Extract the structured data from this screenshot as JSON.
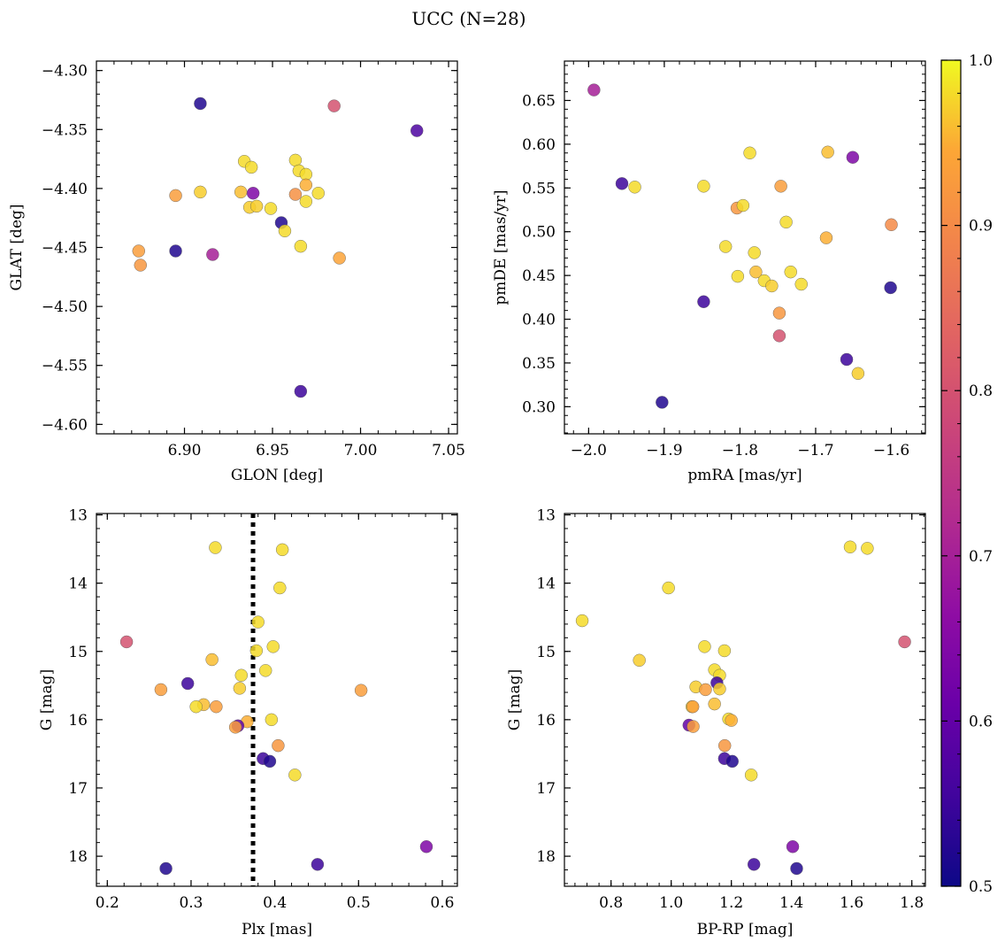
{
  "title": "UCC (N=28)",
  "colorbar": {
    "min": 0.5,
    "max": 1.0,
    "ticks": [
      0.5,
      0.6,
      0.7,
      0.8,
      0.9,
      1.0
    ],
    "tick_labels": [
      "0.5",
      "0.6",
      "0.7",
      "0.8",
      "0.9",
      "1.0"
    ],
    "colormap": "plasma"
  },
  "chart_data": [
    {
      "type": "scatter",
      "xlabel": "GLON [deg]",
      "ylabel": "GLAT [deg]",
      "xlim": [
        6.85,
        7.055
      ],
      "ylim": [
        -4.608,
        -4.292
      ],
      "xticks": [
        6.9,
        6.95,
        7.0,
        7.05
      ],
      "xtick_labels": [
        "6.90",
        "6.95",
        "7.00",
        "7.05"
      ],
      "yticks": [
        -4.3,
        -4.35,
        -4.4,
        -4.45,
        -4.5,
        -4.55,
        -4.6
      ],
      "ytick_labels": [
        "−4.30",
        "−4.35",
        "−4.40",
        "−4.45",
        "−4.50",
        "−4.55",
        "−4.60"
      ],
      "points": [
        {
          "x": 6.909,
          "y": -4.328,
          "c": 0.52
        },
        {
          "x": 6.985,
          "y": -4.33,
          "c": 0.8
        },
        {
          "x": 7.032,
          "y": -4.351,
          "c": 0.57
        },
        {
          "x": 6.934,
          "y": -4.377,
          "c": 0.98
        },
        {
          "x": 6.938,
          "y": -4.382,
          "c": 0.98
        },
        {
          "x": 6.963,
          "y": -4.376,
          "c": 0.98
        },
        {
          "x": 6.965,
          "y": -4.385,
          "c": 0.98
        },
        {
          "x": 6.969,
          "y": -4.388,
          "c": 0.98
        },
        {
          "x": 6.969,
          "y": -4.397,
          "c": 0.95
        },
        {
          "x": 6.895,
          "y": -4.406,
          "c": 0.93
        },
        {
          "x": 6.909,
          "y": -4.403,
          "c": 0.97
        },
        {
          "x": 6.932,
          "y": -4.403,
          "c": 0.96
        },
        {
          "x": 6.939,
          "y": -4.404,
          "c": 0.64
        },
        {
          "x": 6.963,
          "y": -4.405,
          "c": 0.91
        },
        {
          "x": 6.976,
          "y": -4.404,
          "c": 0.98
        },
        {
          "x": 6.969,
          "y": -4.411,
          "c": 0.98
        },
        {
          "x": 6.937,
          "y": -4.416,
          "c": 0.97
        },
        {
          "x": 6.941,
          "y": -4.415,
          "c": 0.97
        },
        {
          "x": 6.949,
          "y": -4.417,
          "c": 0.98
        },
        {
          "x": 6.955,
          "y": -4.429,
          "c": 0.52
        },
        {
          "x": 6.957,
          "y": -4.436,
          "c": 0.98
        },
        {
          "x": 6.966,
          "y": -4.449,
          "c": 0.98
        },
        {
          "x": 6.874,
          "y": -4.453,
          "c": 0.93
        },
        {
          "x": 6.895,
          "y": -4.453,
          "c": 0.52
        },
        {
          "x": 6.916,
          "y": -4.456,
          "c": 0.7
        },
        {
          "x": 6.988,
          "y": -4.459,
          "c": 0.94
        },
        {
          "x": 6.875,
          "y": -4.465,
          "c": 0.92
        },
        {
          "x": 6.966,
          "y": -4.572,
          "c": 0.55
        }
      ]
    },
    {
      "type": "scatter",
      "xlabel": "pmRA [mas/yr]",
      "ylabel": "pmDE [mas/yr]",
      "xlim": [
        -2.032,
        -1.555
      ],
      "ylim": [
        0.269,
        0.695
      ],
      "xticks": [
        -2.0,
        -1.9,
        -1.8,
        -1.7,
        -1.6
      ],
      "xtick_labels": [
        "−2.0",
        "−1.9",
        "−1.8",
        "−1.7",
        "−1.6"
      ],
      "yticks": [
        0.3,
        0.35,
        0.4,
        0.45,
        0.5,
        0.55,
        0.6,
        0.65
      ],
      "ytick_labels": [
        "0.30",
        "0.35",
        "0.40",
        "0.45",
        "0.50",
        "0.55",
        "0.60",
        "0.65"
      ],
      "points": [
        {
          "x": -1.993,
          "y": 0.662,
          "c": 0.7
        },
        {
          "x": -1.956,
          "y": 0.555,
          "c": 0.55
        },
        {
          "x": -1.939,
          "y": 0.551,
          "c": 0.98
        },
        {
          "x": -1.848,
          "y": 0.552,
          "c": 0.98
        },
        {
          "x": -1.787,
          "y": 0.59,
          "c": 0.98
        },
        {
          "x": -1.684,
          "y": 0.591,
          "c": 0.96
        },
        {
          "x": -1.651,
          "y": 0.585,
          "c": 0.64
        },
        {
          "x": -1.746,
          "y": 0.552,
          "c": 0.93
        },
        {
          "x": -1.804,
          "y": 0.527,
          "c": 0.92
        },
        {
          "x": -1.796,
          "y": 0.53,
          "c": 0.98
        },
        {
          "x": -1.739,
          "y": 0.511,
          "c": 0.98
        },
        {
          "x": -1.6,
          "y": 0.508,
          "c": 0.9
        },
        {
          "x": -1.686,
          "y": 0.493,
          "c": 0.95
        },
        {
          "x": -1.819,
          "y": 0.483,
          "c": 0.98
        },
        {
          "x": -1.781,
          "y": 0.476,
          "c": 0.98
        },
        {
          "x": -1.733,
          "y": 0.454,
          "c": 0.98
        },
        {
          "x": -1.779,
          "y": 0.454,
          "c": 0.96
        },
        {
          "x": -1.803,
          "y": 0.449,
          "c": 0.98
        },
        {
          "x": -1.768,
          "y": 0.444,
          "c": 0.98
        },
        {
          "x": -1.719,
          "y": 0.44,
          "c": 0.98
        },
        {
          "x": -1.758,
          "y": 0.438,
          "c": 0.97
        },
        {
          "x": -1.601,
          "y": 0.436,
          "c": 0.52
        },
        {
          "x": -1.848,
          "y": 0.42,
          "c": 0.55
        },
        {
          "x": -1.748,
          "y": 0.407,
          "c": 0.92
        },
        {
          "x": -1.748,
          "y": 0.381,
          "c": 0.8
        },
        {
          "x": -1.659,
          "y": 0.354,
          "c": 0.55
        },
        {
          "x": -1.644,
          "y": 0.338,
          "c": 0.97
        },
        {
          "x": -1.903,
          "y": 0.305,
          "c": 0.52
        }
      ]
    },
    {
      "type": "scatter",
      "xlabel": "Plx [mas]",
      "ylabel": "G [mag]",
      "xlim": [
        0.187,
        0.618
      ],
      "ylim": [
        18.44,
        12.98
      ],
      "xticks": [
        0.2,
        0.3,
        0.4,
        0.5,
        0.6
      ],
      "xtick_labels": [
        "0.2",
        "0.3",
        "0.4",
        "0.5",
        "0.6"
      ],
      "yticks": [
        13,
        14,
        15,
        16,
        17,
        18
      ],
      "ytick_labels": [
        "13",
        "14",
        "15",
        "16",
        "17",
        "18"
      ],
      "vline": 0.374,
      "points": [
        {
          "x": 0.329,
          "y": 13.48,
          "c": 0.98
        },
        {
          "x": 0.409,
          "y": 13.51,
          "c": 0.98
        },
        {
          "x": 0.406,
          "y": 14.07,
          "c": 0.98
        },
        {
          "x": 0.38,
          "y": 14.57,
          "c": 0.98
        },
        {
          "x": 0.223,
          "y": 14.86,
          "c": 0.8
        },
        {
          "x": 0.398,
          "y": 14.93,
          "c": 0.98
        },
        {
          "x": 0.378,
          "y": 14.99,
          "c": 0.98
        },
        {
          "x": 0.325,
          "y": 15.12,
          "c": 0.96
        },
        {
          "x": 0.389,
          "y": 15.28,
          "c": 0.98
        },
        {
          "x": 0.36,
          "y": 15.35,
          "c": 0.98
        },
        {
          "x": 0.296,
          "y": 15.47,
          "c": 0.55
        },
        {
          "x": 0.358,
          "y": 15.54,
          "c": 0.97
        },
        {
          "x": 0.264,
          "y": 15.56,
          "c": 0.93
        },
        {
          "x": 0.503,
          "y": 15.57,
          "c": 0.93
        },
        {
          "x": 0.315,
          "y": 15.78,
          "c": 0.96
        },
        {
          "x": 0.306,
          "y": 15.81,
          "c": 0.98
        },
        {
          "x": 0.33,
          "y": 15.81,
          "c": 0.93
        },
        {
          "x": 0.396,
          "y": 16.0,
          "c": 0.98
        },
        {
          "x": 0.367,
          "y": 16.03,
          "c": 0.95
        },
        {
          "x": 0.356,
          "y": 16.09,
          "c": 0.6
        },
        {
          "x": 0.353,
          "y": 16.11,
          "c": 0.93
        },
        {
          "x": 0.404,
          "y": 16.38,
          "c": 0.92
        },
        {
          "x": 0.386,
          "y": 16.57,
          "c": 0.55
        },
        {
          "x": 0.394,
          "y": 16.61,
          "c": 0.52
        },
        {
          "x": 0.424,
          "y": 16.81,
          "c": 0.98
        },
        {
          "x": 0.581,
          "y": 17.86,
          "c": 0.64
        },
        {
          "x": 0.451,
          "y": 18.12,
          "c": 0.55
        },
        {
          "x": 0.27,
          "y": 18.18,
          "c": 0.52
        }
      ]
    },
    {
      "type": "scatter",
      "xlabel": "BP-RP [mag]",
      "ylabel": "G [mag]",
      "xlim": [
        0.645,
        1.845
      ],
      "ylim": [
        18.44,
        12.98
      ],
      "xticks": [
        0.8,
        1.0,
        1.2,
        1.4,
        1.6,
        1.8
      ],
      "xtick_labels": [
        "0.8",
        "1.0",
        "1.2",
        "1.4",
        "1.6",
        "1.8"
      ],
      "yticks": [
        13,
        14,
        15,
        16,
        17,
        18
      ],
      "ytick_labels": [
        "13",
        "14",
        "15",
        "16",
        "17",
        "18"
      ],
      "points": [
        {
          "x": 1.595,
          "y": 13.47,
          "c": 0.98
        },
        {
          "x": 1.652,
          "y": 13.49,
          "c": 0.98
        },
        {
          "x": 0.991,
          "y": 14.07,
          "c": 0.98
        },
        {
          "x": 0.704,
          "y": 14.55,
          "c": 0.98
        },
        {
          "x": 1.776,
          "y": 14.86,
          "c": 0.8
        },
        {
          "x": 1.111,
          "y": 14.93,
          "c": 0.98
        },
        {
          "x": 1.177,
          "y": 14.99,
          "c": 0.98
        },
        {
          "x": 0.894,
          "y": 15.13,
          "c": 0.97
        },
        {
          "x": 1.144,
          "y": 15.27,
          "c": 0.98
        },
        {
          "x": 1.161,
          "y": 15.35,
          "c": 0.98
        },
        {
          "x": 1.152,
          "y": 15.46,
          "c": 0.55
        },
        {
          "x": 1.082,
          "y": 15.52,
          "c": 0.97
        },
        {
          "x": 1.114,
          "y": 15.56,
          "c": 0.93
        },
        {
          "x": 1.161,
          "y": 15.55,
          "c": 0.97
        },
        {
          "x": 1.144,
          "y": 15.77,
          "c": 0.96
        },
        {
          "x": 1.069,
          "y": 15.81,
          "c": 0.98
        },
        {
          "x": 1.072,
          "y": 15.81,
          "c": 0.93
        },
        {
          "x": 1.191,
          "y": 15.99,
          "c": 0.98
        },
        {
          "x": 1.2,
          "y": 16.01,
          "c": 0.95
        },
        {
          "x": 1.059,
          "y": 16.08,
          "c": 0.6
        },
        {
          "x": 1.073,
          "y": 16.1,
          "c": 0.93
        },
        {
          "x": 1.178,
          "y": 16.38,
          "c": 0.92
        },
        {
          "x": 1.177,
          "y": 16.57,
          "c": 0.55
        },
        {
          "x": 1.203,
          "y": 16.61,
          "c": 0.52
        },
        {
          "x": 1.266,
          "y": 16.81,
          "c": 0.98
        },
        {
          "x": 1.404,
          "y": 17.86,
          "c": 0.64
        },
        {
          "x": 1.275,
          "y": 18.12,
          "c": 0.55
        },
        {
          "x": 1.417,
          "y": 18.18,
          "c": 0.52
        }
      ]
    }
  ]
}
